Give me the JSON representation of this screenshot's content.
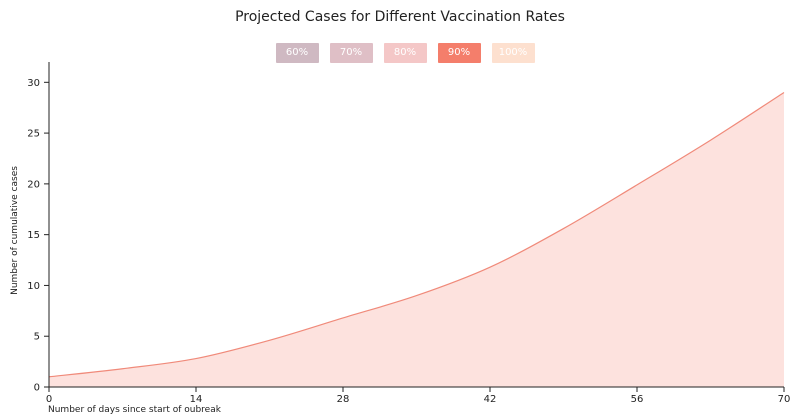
{
  "chart_data": {
    "type": "area",
    "title": "Projected Cases for Different Vaccination Rates",
    "xlabel": "Number of days since start of oubreak",
    "ylabel": "Number of cumulative cases",
    "xlim": [
      0,
      70
    ],
    "ylim": [
      0,
      32
    ],
    "x_ticks": [
      0,
      14,
      28,
      42,
      56,
      70
    ],
    "y_ticks": [
      0,
      5,
      10,
      15,
      20,
      25,
      30
    ],
    "grid": false,
    "legend_position": "top-center",
    "legend": [
      {
        "label": "60%",
        "color": "#cfb9c2",
        "active": false
      },
      {
        "label": "70%",
        "color": "#dfbfc6",
        "active": false
      },
      {
        "label": "80%",
        "color": "#f4c7c7",
        "active": false
      },
      {
        "label": "90%",
        "color": "#f47e6b",
        "active": true
      },
      {
        "label": "100%",
        "color": "#fde0cf",
        "active": false
      }
    ],
    "series": [
      {
        "name": "90%",
        "line_color": "#f08a7a",
        "fill_color": "#fde2de",
        "x": [
          0,
          7,
          14,
          21,
          28,
          35,
          42,
          49,
          56,
          63,
          70
        ],
        "y": [
          1.0,
          1.8,
          2.8,
          4.6,
          6.8,
          9.0,
          11.8,
          15.6,
          19.9,
          24.3,
          29.0
        ]
      }
    ]
  }
}
